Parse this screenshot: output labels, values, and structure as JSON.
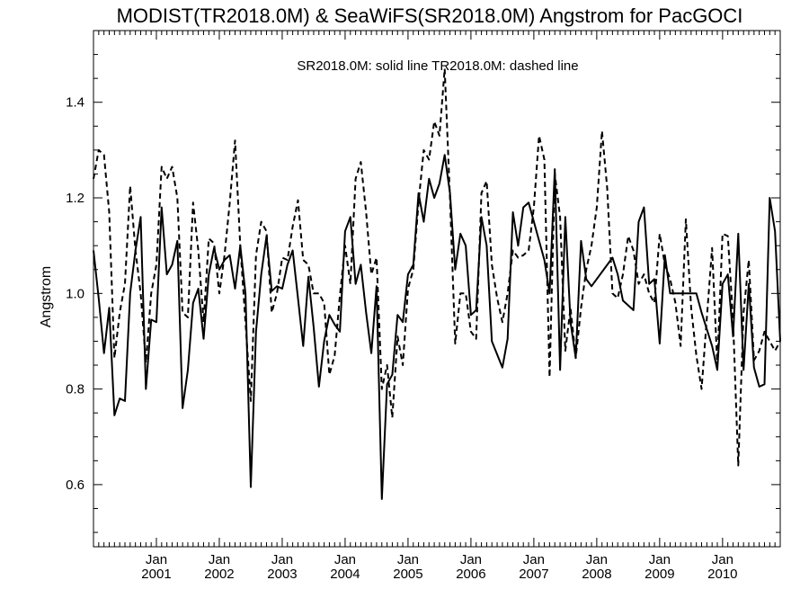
{
  "chart_data": {
    "type": "line",
    "title": "MODIST(TR2018.0M) & SeaWiFS(SR2018.0M)  Angstrom for PacGOCI",
    "legend_text": "SR2018.0M: solid line   TR2018.0M: dashed line",
    "ylabel": "Angstrom",
    "xlabel": "",
    "ylim": [
      0.47,
      1.55
    ],
    "xlim": [
      "2000-01",
      "2010-12"
    ],
    "y_ticks": [
      0.6,
      0.8,
      1.0,
      1.2,
      1.4
    ],
    "y_tick_labels": [
      "0.6",
      "0.8",
      "1.0",
      "1.2",
      "1.4"
    ],
    "x_major_ticks": [
      {
        "month_label": "Jan",
        "year_label": "2001",
        "date": "2001-01"
      },
      {
        "month_label": "Jan",
        "year_label": "2002",
        "date": "2002-01"
      },
      {
        "month_label": "Jan",
        "year_label": "2003",
        "date": "2003-01"
      },
      {
        "month_label": "Jan",
        "year_label": "2004",
        "date": "2004-01"
      },
      {
        "month_label": "Jan",
        "year_label": "2005",
        "date": "2005-01"
      },
      {
        "month_label": "Jan",
        "year_label": "2006",
        "date": "2006-01"
      },
      {
        "month_label": "Jan",
        "year_label": "2007",
        "date": "2007-01"
      },
      {
        "month_label": "Jan",
        "year_label": "2008",
        "date": "2008-01"
      },
      {
        "month_label": "Jan",
        "year_label": "2009",
        "date": "2009-01"
      },
      {
        "month_label": "Jan",
        "year_label": "2010",
        "date": "2010-01"
      }
    ],
    "grid": false,
    "series": [
      {
        "style": "solid",
        "points": [
          [
            "2000-01",
            1.09
          ],
          [
            "2000-02",
            0.99
          ],
          [
            "2000-03",
            0.875
          ],
          [
            "2000-04",
            0.97
          ],
          [
            "2000-05",
            0.745
          ],
          [
            "2000-06",
            0.78
          ],
          [
            "2000-07",
            0.775
          ],
          [
            "2000-08",
            1.0
          ],
          [
            "2000-09",
            1.09
          ],
          [
            "2000-10",
            1.16
          ],
          [
            "2000-11",
            0.8
          ],
          [
            "2000-12",
            0.945
          ],
          [
            "2001-01",
            0.94
          ],
          [
            "2001-02",
            1.18
          ],
          [
            "2001-03",
            1.04
          ],
          [
            "2001-04",
            1.06
          ],
          [
            "2001-05",
            1.11
          ],
          [
            "2001-06",
            0.76
          ],
          [
            "2001-07",
            0.84
          ],
          [
            "2001-08",
            0.98
          ],
          [
            "2001-09",
            1.01
          ],
          [
            "2001-10",
            0.905
          ],
          [
            "2001-11",
            1.04
          ],
          [
            "2001-12",
            1.095
          ],
          [
            "2002-01",
            1.05
          ],
          [
            "2002-02",
            1.07
          ],
          [
            "2002-03",
            1.08
          ],
          [
            "2002-04",
            1.01
          ],
          [
            "2002-05",
            1.1
          ],
          [
            "2002-06",
            1.0
          ],
          [
            "2002-07",
            0.595
          ],
          [
            "2002-08",
            0.92
          ],
          [
            "2002-09",
            1.04
          ],
          [
            "2002-10",
            1.12
          ],
          [
            "2002-11",
            1.005
          ],
          [
            "2002-12",
            1.015
          ],
          [
            "2003-01",
            1.01
          ],
          [
            "2003-02",
            1.06
          ],
          [
            "2003-03",
            1.09
          ],
          [
            "2003-04",
            0.99
          ],
          [
            "2003-05",
            0.89
          ],
          [
            "2003-06",
            1.035
          ],
          [
            "2003-07",
            0.93
          ],
          [
            "2003-08",
            0.805
          ],
          [
            "2003-09",
            0.9
          ],
          [
            "2003-10",
            0.955
          ],
          [
            "2003-11",
            0.935
          ],
          [
            "2003-12",
            0.92
          ],
          [
            "2004-01",
            1.13
          ],
          [
            "2004-02",
            1.16
          ],
          [
            "2004-03",
            1.02
          ],
          [
            "2004-04",
            1.06
          ],
          [
            "2004-05",
            0.96
          ],
          [
            "2004-06",
            0.875
          ],
          [
            "2004-07",
            1.015
          ],
          [
            "2004-08",
            0.57
          ],
          [
            "2004-09",
            0.81
          ],
          [
            "2004-10",
            0.83
          ],
          [
            "2004-11",
            0.955
          ],
          [
            "2004-12",
            0.94
          ],
          [
            "2005-01",
            1.04
          ],
          [
            "2005-02",
            1.06
          ],
          [
            "2005-03",
            1.21
          ],
          [
            "2005-04",
            1.15
          ],
          [
            "2005-05",
            1.24
          ],
          [
            "2005-06",
            1.2
          ],
          [
            "2005-07",
            1.23
          ],
          [
            "2005-08",
            1.29
          ],
          [
            "2005-09",
            1.21
          ],
          [
            "2005-10",
            1.05
          ],
          [
            "2005-11",
            1.125
          ],
          [
            "2005-12",
            1.1
          ],
          [
            "2006-01",
            0.955
          ],
          [
            "2006-02",
            0.965
          ],
          [
            "2006-03",
            1.16
          ],
          [
            "2006-04",
            1.1
          ],
          [
            "2006-05",
            0.9
          ],
          [
            "2006-07",
            0.845
          ],
          [
            "2006-08",
            0.905
          ],
          [
            "2006-09",
            1.17
          ],
          [
            "2006-10",
            1.1
          ],
          [
            "2006-11",
            1.18
          ],
          [
            "2006-12",
            1.19
          ],
          [
            "2007-03",
            1.07
          ],
          [
            "2007-04",
            1.0
          ],
          [
            "2007-05",
            1.26
          ],
          [
            "2007-06",
            0.84
          ],
          [
            "2007-07",
            1.16
          ],
          [
            "2007-08",
            0.94
          ],
          [
            "2007-09",
            0.865
          ],
          [
            "2007-10",
            1.11
          ],
          [
            "2007-11",
            1.03
          ],
          [
            "2007-12",
            1.015
          ],
          [
            "2008-04",
            1.075
          ],
          [
            "2008-05",
            1.04
          ],
          [
            "2008-06",
            0.985
          ],
          [
            "2008-08",
            0.965
          ],
          [
            "2008-09",
            1.15
          ],
          [
            "2008-10",
            1.18
          ],
          [
            "2008-11",
            1.02
          ],
          [
            "2008-12",
            1.03
          ],
          [
            "2009-01",
            0.895
          ],
          [
            "2009-02",
            1.08
          ],
          [
            "2009-03",
            1.0
          ],
          [
            "2009-08",
            1.0
          ],
          [
            "2009-09",
            0.96
          ],
          [
            "2009-11",
            0.89
          ],
          [
            "2009-12",
            0.84
          ],
          [
            "2010-01",
            1.02
          ],
          [
            "2010-02",
            1.04
          ],
          [
            "2010-03",
            0.91
          ],
          [
            "2010-04",
            1.125
          ],
          [
            "2010-05",
            0.84
          ],
          [
            "2010-06",
            1.02
          ],
          [
            "2010-07",
            0.845
          ],
          [
            "2010-08",
            0.805
          ],
          [
            "2010-09",
            0.81
          ],
          [
            "2010-10",
            1.2
          ],
          [
            "2010-11",
            1.13
          ],
          [
            "2010-12",
            0.9
          ]
        ]
      },
      {
        "style": "dashed",
        "points": [
          [
            "2000-01",
            1.24
          ],
          [
            "2000-02",
            1.3
          ],
          [
            "2000-03",
            1.29
          ],
          [
            "2000-04",
            1.17
          ],
          [
            "2000-05",
            0.865
          ],
          [
            "2000-06",
            0.96
          ],
          [
            "2000-07",
            1.02
          ],
          [
            "2000-08",
            1.225
          ],
          [
            "2000-09",
            1.09
          ],
          [
            "2000-10",
            1.0
          ],
          [
            "2000-11",
            0.855
          ],
          [
            "2000-12",
            1.0
          ],
          [
            "2001-01",
            1.06
          ],
          [
            "2001-02",
            1.265
          ],
          [
            "2001-03",
            1.24
          ],
          [
            "2001-04",
            1.265
          ],
          [
            "2001-05",
            1.2
          ],
          [
            "2001-06",
            0.96
          ],
          [
            "2001-07",
            0.95
          ],
          [
            "2001-08",
            1.19
          ],
          [
            "2001-09",
            1.09
          ],
          [
            "2001-10",
            0.94
          ],
          [
            "2001-11",
            1.115
          ],
          [
            "2001-12",
            1.105
          ],
          [
            "2002-01",
            1.0
          ],
          [
            "2002-02",
            1.08
          ],
          [
            "2002-03",
            1.19
          ],
          [
            "2002-04",
            1.32
          ],
          [
            "2002-05",
            1.1
          ],
          [
            "2002-06",
            0.94
          ],
          [
            "2002-07",
            0.775
          ],
          [
            "2002-08",
            1.08
          ],
          [
            "2002-09",
            1.15
          ],
          [
            "2002-10",
            1.13
          ],
          [
            "2002-11",
            0.96
          ],
          [
            "2002-12",
            1.0
          ],
          [
            "2003-01",
            1.075
          ],
          [
            "2003-02",
            1.07
          ],
          [
            "2003-03",
            1.14
          ],
          [
            "2003-04",
            1.195
          ],
          [
            "2003-05",
            1.07
          ],
          [
            "2003-06",
            1.06
          ],
          [
            "2003-07",
            1.0
          ],
          [
            "2003-08",
            1.0
          ],
          [
            "2003-09",
            0.98
          ],
          [
            "2003-10",
            0.83
          ],
          [
            "2003-11",
            0.87
          ],
          [
            "2003-12",
            0.995
          ],
          [
            "2004-01",
            1.1
          ],
          [
            "2004-02",
            1.02
          ],
          [
            "2004-03",
            1.24
          ],
          [
            "2004-04",
            1.275
          ],
          [
            "2004-05",
            1.17
          ],
          [
            "2004-06",
            1.04
          ],
          [
            "2004-07",
            1.075
          ],
          [
            "2004-08",
            0.8
          ],
          [
            "2004-09",
            0.85
          ],
          [
            "2004-10",
            0.74
          ],
          [
            "2004-11",
            0.91
          ],
          [
            "2004-12",
            0.85
          ],
          [
            "2005-01",
            1.01
          ],
          [
            "2005-02",
            1.05
          ],
          [
            "2005-03",
            1.19
          ],
          [
            "2005-04",
            1.3
          ],
          [
            "2005-05",
            1.28
          ],
          [
            "2005-06",
            1.36
          ],
          [
            "2005-07",
            1.33
          ],
          [
            "2005-08",
            1.47
          ],
          [
            "2005-09",
            1.2
          ],
          [
            "2005-10",
            0.895
          ],
          [
            "2005-11",
            1.0
          ],
          [
            "2005-12",
            1.0
          ],
          [
            "2006-01",
            0.92
          ],
          [
            "2006-02",
            0.905
          ],
          [
            "2006-03",
            1.21
          ],
          [
            "2006-04",
            1.235
          ],
          [
            "2006-05",
            1.06
          ],
          [
            "2006-06",
            0.99
          ],
          [
            "2006-07",
            0.94
          ],
          [
            "2006-08",
            1.0
          ],
          [
            "2006-09",
            1.09
          ],
          [
            "2006-10",
            1.075
          ],
          [
            "2006-11",
            1.08
          ],
          [
            "2006-12",
            1.09
          ],
          [
            "2007-01",
            1.18
          ],
          [
            "2007-02",
            1.33
          ],
          [
            "2007-03",
            1.28
          ],
          [
            "2007-04",
            0.825
          ],
          [
            "2007-05",
            1.25
          ],
          [
            "2007-06",
            1.16
          ],
          [
            "2007-07",
            0.88
          ],
          [
            "2007-08",
            0.97
          ],
          [
            "2007-09",
            0.865
          ],
          [
            "2007-10",
            0.97
          ],
          [
            "2007-11",
            1.05
          ],
          [
            "2007-12",
            1.1
          ],
          [
            "2008-01",
            1.18
          ],
          [
            "2008-02",
            1.34
          ],
          [
            "2008-03",
            1.22
          ],
          [
            "2008-04",
            1.0
          ],
          [
            "2008-05",
            0.99
          ],
          [
            "2008-06",
            1.04
          ],
          [
            "2008-07",
            1.12
          ],
          [
            "2008-08",
            1.09
          ],
          [
            "2008-09",
            1.02
          ],
          [
            "2008-10",
            1.04
          ],
          [
            "2008-11",
            1.0
          ],
          [
            "2008-12",
            0.98
          ],
          [
            "2009-01",
            1.125
          ],
          [
            "2009-02",
            1.06
          ],
          [
            "2009-03",
            1.03
          ],
          [
            "2009-04",
            0.98
          ],
          [
            "2009-05",
            0.89
          ],
          [
            "2009-06",
            1.155
          ],
          [
            "2009-07",
            0.97
          ],
          [
            "2009-08",
            0.87
          ],
          [
            "2009-09",
            0.8
          ],
          [
            "2009-10",
            0.95
          ],
          [
            "2009-11",
            1.095
          ],
          [
            "2009-12",
            0.85
          ],
          [
            "2010-01",
            1.125
          ],
          [
            "2010-02",
            1.12
          ],
          [
            "2010-03",
            0.945
          ],
          [
            "2010-04",
            0.64
          ],
          [
            "2010-05",
            0.96
          ],
          [
            "2010-06",
            1.07
          ],
          [
            "2010-07",
            0.86
          ],
          [
            "2010-08",
            0.88
          ],
          [
            "2010-09",
            0.92
          ],
          [
            "2010-10",
            0.9
          ],
          [
            "2010-11",
            0.88
          ],
          [
            "2010-12",
            0.9
          ]
        ]
      }
    ]
  }
}
